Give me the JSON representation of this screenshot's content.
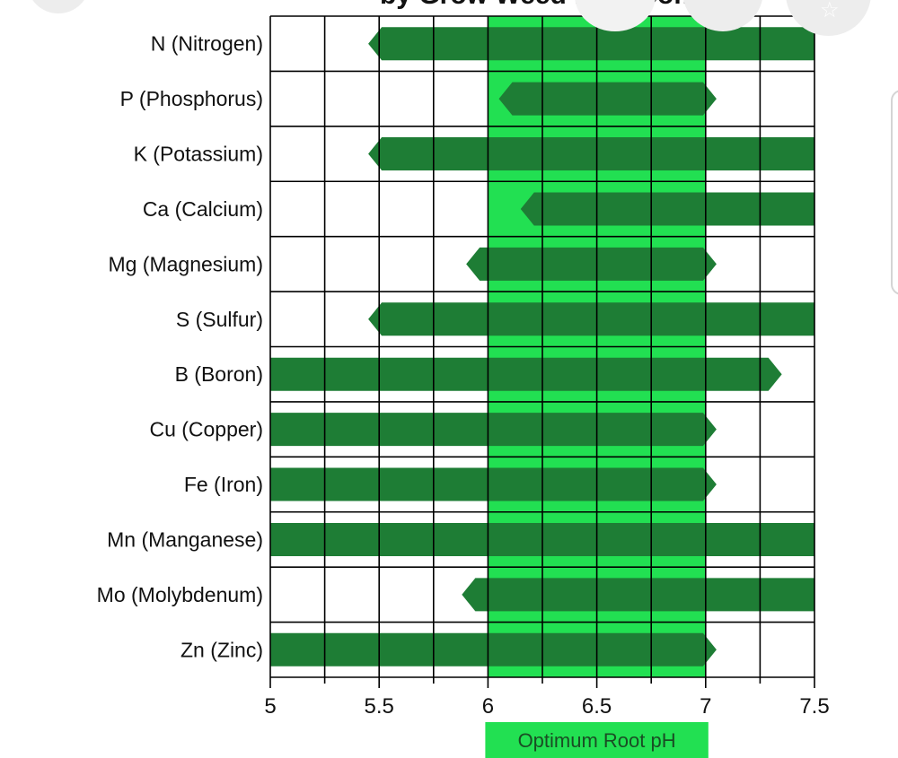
{
  "header_fragment": "by Grow Weed Easy.com",
  "overlay_buttons": [
    {
      "name": "left-overlay-button"
    },
    {
      "name": "center-overlay-button"
    },
    {
      "name": "share-overlay-button"
    },
    {
      "name": "star-overlay-button"
    }
  ],
  "colors": {
    "bar": "#1e7d35",
    "optimum_band": "#22e052",
    "grid": "#000000",
    "label_box": "#22e052"
  },
  "chart_data": {
    "type": "bar",
    "orientation": "horizontal-range",
    "title": "",
    "xlabel": "",
    "ylabel": "",
    "xlim": [
      5,
      7.5
    ],
    "x_ticks": [
      "5",
      "5.5",
      "6",
      "6.5",
      "7",
      "7.5"
    ],
    "optimum_range": [
      6,
      7
    ],
    "optimum_label": "Optimum Root pH",
    "categories": [
      "N (Nitrogen)",
      "P (Phosphorus)",
      "K (Potassium)",
      "Ca (Calcium)",
      "Mg (Magnesium)",
      "S (Sulfur)",
      "B (Boron)",
      "Cu (Copper)",
      "Fe (Iron)",
      "Mn (Manganese)",
      "Mo (Molybdenum)",
      "Zn (Zinc)"
    ],
    "ranges": [
      [
        5.45,
        7.5
      ],
      [
        6.05,
        7.05
      ],
      [
        5.45,
        7.5
      ],
      [
        6.15,
        7.5
      ],
      [
        5.9,
        7.05
      ],
      [
        5.45,
        7.5
      ],
      [
        5.0,
        7.35
      ],
      [
        5.0,
        7.05
      ],
      [
        5.0,
        7.05
      ],
      [
        5.0,
        7.5
      ],
      [
        5.88,
        7.5
      ],
      [
        5.0,
        7.05
      ]
    ],
    "grid": true
  }
}
